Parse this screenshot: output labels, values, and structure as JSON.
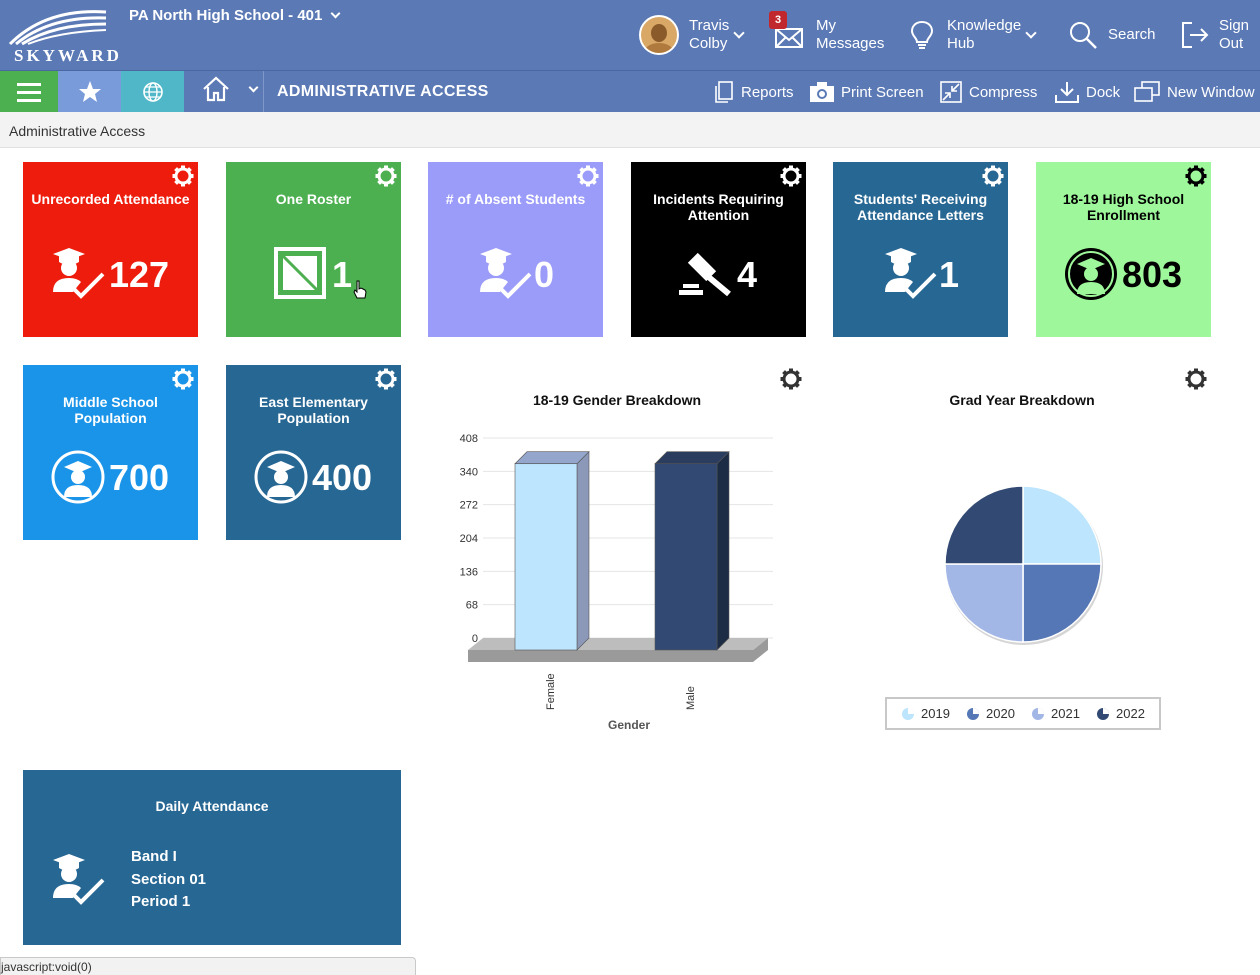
{
  "header": {
    "logo_text": "SKYWARD",
    "school": "PA North High School - 401",
    "user": {
      "line1": "Travis",
      "line2": "Colby"
    },
    "messages": {
      "line1": "My",
      "line2": "Messages",
      "badge": "3"
    },
    "knowledge": {
      "line1": "Knowledge",
      "line2": "Hub"
    },
    "search": "Search",
    "signout": {
      "line1": "Sign",
      "line2": "Out"
    }
  },
  "nav": {
    "title": "ADMINISTRATIVE ACCESS",
    "tools": {
      "reports": "Reports",
      "print_screen": "Print Screen",
      "compress": "Compress",
      "dock": "Dock",
      "new_window": "New Window"
    }
  },
  "breadcrumb": "Administrative Access",
  "tiles": [
    {
      "title": "Unrecorded Attendance",
      "count": "127",
      "color": "#ee1c0c"
    },
    {
      "title": "One Roster",
      "count": "1",
      "color": "#4caf50"
    },
    {
      "title": "# of Absent Students",
      "count": "0",
      "color": "#9b9bf9"
    },
    {
      "title": "Incidents Requiring Attention",
      "count": "4",
      "color": "#000000"
    },
    {
      "title": "Students' Receiving Attendance Letters",
      "count": "1",
      "color": "#276793"
    },
    {
      "title": "18-19 High School Enrollment",
      "count": "803",
      "color": "#9ef79a"
    },
    {
      "title": "Middle School Population",
      "count": "700",
      "color": "#1a94e8"
    },
    {
      "title": "East Elementary Population",
      "count": "400",
      "color": "#276793"
    }
  ],
  "daily_attendance": {
    "title": "Daily Attendance",
    "band": "Band I",
    "section": "Section 01",
    "period": "Period 1"
  },
  "status_text": "javascript:void(0)",
  "chart_data": [
    {
      "type": "bar",
      "title": "18-19 Gender Breakdown",
      "categories": [
        "Female",
        "Male"
      ],
      "values": [
        380,
        380
      ],
      "colors": [
        "#bde5fd",
        "#324a73"
      ],
      "xlabel": "Gender",
      "ylabel": "",
      "yticks": [
        "0",
        "68",
        "136",
        "204",
        "272",
        "340",
        "408"
      ],
      "ylim": [
        0,
        408
      ],
      "grid": true
    },
    {
      "type": "pie",
      "title": "Grad Year Breakdown",
      "categories": [
        "2019",
        "2020",
        "2021",
        "2022"
      ],
      "values": [
        25,
        25,
        25,
        25
      ],
      "colors": [
        "#bde5fd",
        "#5677b5",
        "#a3b7e7",
        "#324a73"
      ],
      "legend": "bottom"
    }
  ]
}
